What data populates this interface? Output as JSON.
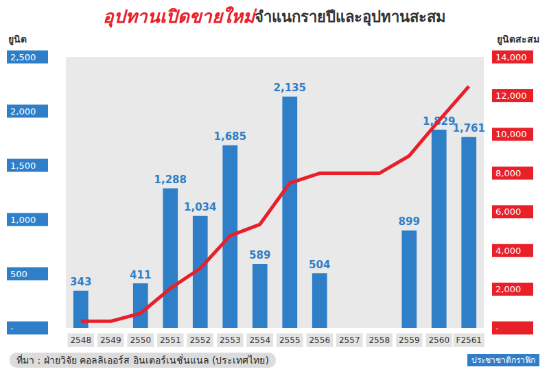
{
  "chart_data": {
    "type": "bar",
    "title_parts": [
      {
        "text": "อุปทานเปิดขายใหม่",
        "color": "#e8202a"
      },
      {
        "text": "จำแนกรายปีและอุปทานสะสม",
        "color": "#333333"
      }
    ],
    "y_label": "ยูนิต",
    "y2_label": "ยูนิตสะสม",
    "source": "ที่มา : ฝ่ายวิจัย คอลลิเออร์ส อินเตอร์เนชั่นแนล (ประเทศไทย)",
    "credit": "ประชาชาติกราฟิก",
    "categories": [
      "2548",
      "2549",
      "2550",
      "2551",
      "2552",
      "2553",
      "2554",
      "2555",
      "2556",
      "2557",
      "2558",
      "2559",
      "2560",
      "F2561"
    ],
    "series": [
      {
        "type": "bar",
        "color": "#2f7fc8",
        "data_labels": true,
        "values": [
          343,
          null,
          411,
          1288,
          1034,
          1685,
          589,
          2135,
          504,
          null,
          null,
          899,
          1829,
          1761
        ],
        "value_labels": [
          "343",
          null,
          "411",
          "1,288",
          "1,034",
          "1,685",
          "589",
          "2,135",
          "504",
          null,
          null,
          "899",
          "1,829",
          "1,761"
        ]
      },
      {
        "type": "line",
        "color": "#e8202a",
        "axis": "y2",
        "values": [
          343,
          343,
          754,
          2042,
          3076,
          4761,
          5350,
          7485,
          7989,
          7989,
          7989,
          8888,
          10717,
          12478
        ]
      }
    ],
    "ylim": [
      0,
      2500
    ],
    "yticks": [
      {
        "value": 0,
        "label": "-"
      },
      500,
      {
        "value": 1000,
        "label": "1,000"
      },
      {
        "value": 1500,
        "label": "1,500"
      },
      {
        "value": 2000,
        "label": "2,000"
      },
      {
        "value": 2500,
        "label": "2,500"
      }
    ],
    "y2lim": [
      0,
      14000
    ],
    "y2ticks": [
      {
        "value": 0,
        "label": "-"
      },
      {
        "value": 2000,
        "label": "2,000"
      },
      {
        "value": 4000,
        "label": "4,000"
      },
      {
        "value": 6000,
        "label": "6,000"
      },
      {
        "value": 8000,
        "label": "8,000"
      },
      {
        "value": 10000,
        "label": "10,000"
      },
      {
        "value": 12000,
        "label": "12,000"
      },
      {
        "value": 14000,
        "label": "14,000"
      }
    ],
    "grid": false
  }
}
